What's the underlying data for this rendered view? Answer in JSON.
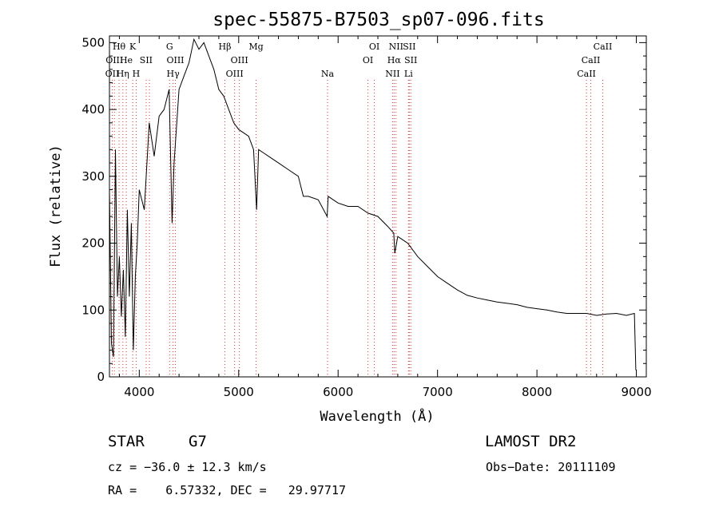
{
  "chart_data": {
    "type": "line",
    "title": "spec-55875-B7503_sp07-096.fits",
    "xlabel": "Wavelength (Å)",
    "ylabel": "Flux (relative)",
    "xlim": [
      3700,
      9100
    ],
    "ylim": [
      0,
      510
    ],
    "xticks": [
      4000,
      5000,
      6000,
      7000,
      8000,
      9000
    ],
    "yticks": [
      0,
      100,
      200,
      300,
      400,
      500
    ],
    "series": [
      {
        "x": [
          3700,
          3720,
          3740,
          3760,
          3780,
          3800,
          3820,
          3840,
          3860,
          3880,
          3900,
          3920,
          3940,
          3960,
          3980,
          4000,
          4050,
          4100,
          4150,
          4200,
          4250,
          4300,
          4330,
          4350,
          4400,
          4450,
          4500,
          4550,
          4600,
          4650,
          4700,
          4750,
          4800,
          4850,
          4900,
          4950,
          5000,
          5100,
          5150,
          5180,
          5200,
          5250,
          5300,
          5400,
          5500,
          5600,
          5650,
          5700,
          5800,
          5890,
          5900,
          6000,
          6100,
          6200,
          6300,
          6400,
          6500,
          6560,
          6570,
          6600,
          6700,
          6800,
          6900,
          7000,
          7100,
          7200,
          7300,
          7400,
          7500,
          7600,
          7700,
          7800,
          7900,
          8000,
          8100,
          8200,
          8300,
          8400,
          8500,
          8600,
          8700,
          8800,
          8900,
          8980,
          8995
        ],
        "y": [
          280,
          50,
          30,
          340,
          120,
          180,
          90,
          160,
          60,
          250,
          120,
          230,
          40,
          150,
          200,
          280,
          250,
          380,
          330,
          390,
          400,
          430,
          230,
          320,
          430,
          450,
          470,
          505,
          490,
          500,
          480,
          460,
          430,
          420,
          400,
          380,
          370,
          360,
          340,
          250,
          340,
          335,
          330,
          320,
          310,
          300,
          270,
          270,
          265,
          240,
          270,
          260,
          255,
          255,
          245,
          240,
          225,
          215,
          185,
          210,
          200,
          180,
          165,
          150,
          140,
          130,
          122,
          118,
          115,
          112,
          110,
          108,
          104,
          102,
          100,
          97,
          95,
          95,
          95,
          92,
          94,
          95,
          92,
          95,
          10
        ]
      }
    ],
    "lines": [
      {
        "wl": 3728,
        "label": "OII",
        "row": 3
      },
      {
        "wl": 3750,
        "label": "OIII",
        "row": 2
      },
      {
        "wl": 3797,
        "label": "Hθ",
        "row": 1
      },
      {
        "wl": 3835,
        "label": "Hη",
        "row": 3
      },
      {
        "wl": 3869,
        "label": "He",
        "row": 2
      },
      {
        "wl": 3934,
        "label": "K",
        "row": 1
      },
      {
        "wl": 3969,
        "label": "H",
        "row": 3
      },
      {
        "wl": 4069,
        "label": "SII",
        "row": 2
      },
      {
        "wl": 4102,
        "label": "",
        "row": 0
      },
      {
        "wl": 4305,
        "label": "G",
        "row": 1
      },
      {
        "wl": 4340,
        "label": "Hγ",
        "row": 3
      },
      {
        "wl": 4363,
        "label": "OIII",
        "row": 2
      },
      {
        "wl": 4861,
        "label": "Hβ",
        "row": 1
      },
      {
        "wl": 4959,
        "label": "OIII",
        "row": 3
      },
      {
        "wl": 5007,
        "label": "OIII",
        "row": 2
      },
      {
        "wl": 5175,
        "label": "Mg",
        "row": 1
      },
      {
        "wl": 5894,
        "label": "Na",
        "row": 3
      },
      {
        "wl": 6300,
        "label": "OI",
        "row": 2
      },
      {
        "wl": 6364,
        "label": "OI",
        "row": 1
      },
      {
        "wl": 6548,
        "label": "NII",
        "row": 3
      },
      {
        "wl": 6563,
        "label": "Hα",
        "row": 2
      },
      {
        "wl": 6583,
        "label": "NII",
        "row": 1
      },
      {
        "wl": 6716,
        "label": "SII",
        "row": 1
      },
      {
        "wl": 6731,
        "label": "SII",
        "row": 2
      },
      {
        "wl": 6708,
        "label": "Li",
        "row": 3
      },
      {
        "wl": 8498,
        "label": "CaII",
        "row": 3
      },
      {
        "wl": 8542,
        "label": "CaII",
        "row": 2
      },
      {
        "wl": 8662,
        "label": "CaII",
        "row": 1
      }
    ]
  },
  "footer": {
    "object": "STAR",
    "subclass": "G7",
    "survey": "LAMOST DR2",
    "cz": "cz = −36.0 ± 12.3 km/s",
    "obs_date": "Obs−Date: 20111109",
    "coords": "RA =    6.57332, DEC =   29.97717"
  }
}
